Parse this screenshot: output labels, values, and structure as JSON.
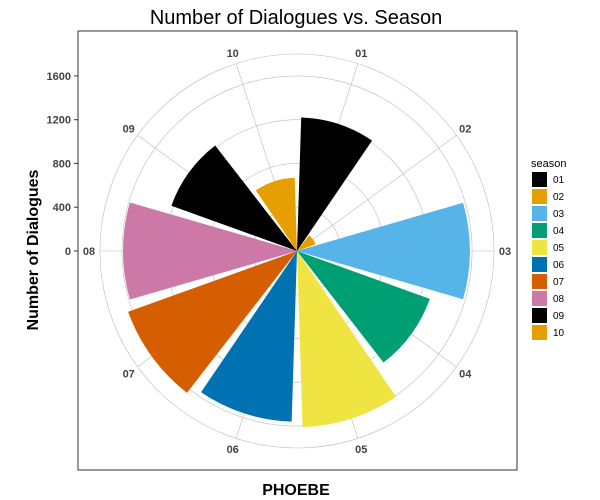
{
  "chart_data": {
    "type": "bar",
    "coord": "polar",
    "title": "Number of Dialogues vs. Season",
    "xlabel": "PHOEBE",
    "ylabel": "Number of Dialogues",
    "categories": [
      "01",
      "02",
      "03",
      "04",
      "05",
      "06",
      "07",
      "08",
      "09",
      "10"
    ],
    "values": [
      1220,
      180,
      1580,
      1290,
      1610,
      1560,
      1640,
      1590,
      1220,
      670
    ],
    "y_ticks": [
      0,
      400,
      800,
      1200,
      1600
    ],
    "y_tick_labels": [
      "0",
      "400",
      "800",
      "1200",
      "1600"
    ],
    "ylim": [
      0,
      1800
    ],
    "grid": true,
    "legend": {
      "title": "season",
      "position": "right",
      "entries": [
        "01",
        "02",
        "03",
        "04",
        "05",
        "06",
        "07",
        "08",
        "09",
        "10"
      ]
    },
    "colors": [
      "#000000",
      "#E69F00",
      "#56B4E9",
      "#009E73",
      "#F0E442",
      "#0072B2",
      "#D55E00",
      "#CC79A7",
      "#000000",
      "#E69F00"
    ]
  }
}
